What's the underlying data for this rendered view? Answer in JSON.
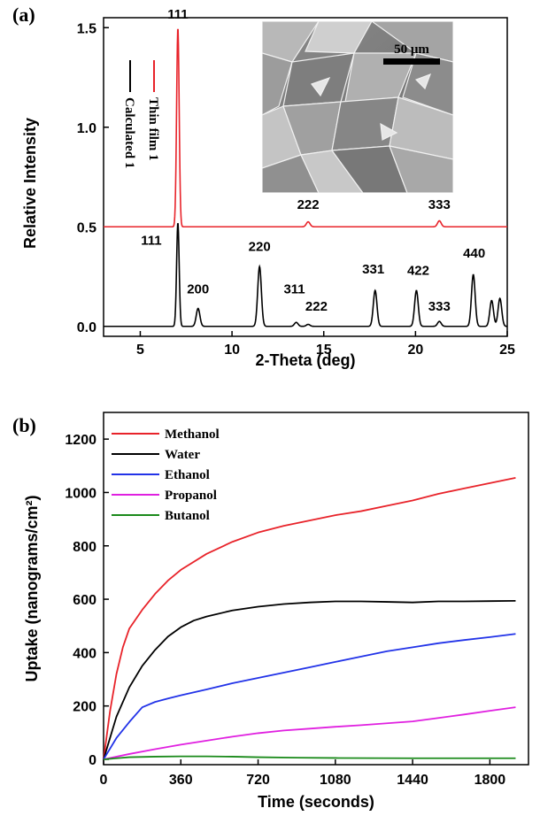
{
  "chart_data": [
    {
      "panel": "(a)",
      "type": "line",
      "xlabel": "2-Theta (deg)",
      "ylabel": "Relative Intensity",
      "xlim": [
        3,
        25
      ],
      "ylim": [
        -0.05,
        1.55
      ],
      "xticks": [
        5,
        10,
        15,
        20,
        25
      ],
      "yticks": [
        0.0,
        0.5,
        1.0,
        1.5
      ],
      "legend": {
        "placement": "top-left, rotated",
        "entries": [
          "Thin film 1",
          "Calculated 1"
        ]
      },
      "inset": {
        "type": "SEM micrograph",
        "scale_bar": "50 μm",
        "position": "top-right"
      },
      "series": [
        {
          "name": "Thin film 1",
          "color": "#e8232a",
          "baseline": 0.5,
          "peaks": [
            [
              7.05,
              1.0
            ],
            [
              14.15,
              0.025
            ],
            [
              21.3,
              0.03
            ]
          ]
        },
        {
          "name": "Calculated 1",
          "color": "#000000",
          "baseline": 0.0,
          "peaks": [
            [
              7.05,
              0.52
            ],
            [
              8.15,
              0.09
            ],
            [
              11.5,
              0.3
            ],
            [
              13.5,
              0.02
            ],
            [
              14.15,
              0.01
            ],
            [
              17.8,
              0.18
            ],
            [
              20.05,
              0.18
            ],
            [
              21.3,
              0.025
            ],
            [
              23.15,
              0.26
            ],
            [
              24.15,
              0.13
            ],
            [
              24.6,
              0.14
            ]
          ]
        }
      ],
      "peak_labels": [
        {
          "text": "111",
          "x": 7.05,
          "y": 1.545
        },
        {
          "text": "222",
          "x": 14.15,
          "y": 0.59
        },
        {
          "text": "333",
          "x": 21.3,
          "y": 0.59
        },
        {
          "text": "111",
          "x": 5.6,
          "y": 0.41
        },
        {
          "text": "200",
          "x": 8.15,
          "y": 0.165
        },
        {
          "text": "220",
          "x": 11.5,
          "y": 0.38
        },
        {
          "text": "311",
          "x": 13.4,
          "y": 0.165
        },
        {
          "text": "222",
          "x": 14.6,
          "y": 0.08
        },
        {
          "text": "331",
          "x": 17.7,
          "y": 0.265
        },
        {
          "text": "422",
          "x": 20.15,
          "y": 0.26
        },
        {
          "text": "333",
          "x": 21.3,
          "y": 0.08
        },
        {
          "text": "440",
          "x": 23.2,
          "y": 0.345
        }
      ]
    },
    {
      "panel": "(b)",
      "type": "line",
      "xlabel": "Time (seconds)",
      "ylabel": "Uptake (nanograms/cm²)",
      "xlim": [
        0,
        1980
      ],
      "ylim": [
        -20,
        1300
      ],
      "xticks": [
        0,
        360,
        720,
        1080,
        1440,
        1800
      ],
      "yticks": [
        0,
        200,
        400,
        600,
        800,
        1000,
        1200
      ],
      "legend": {
        "placement": "top-left",
        "entries": [
          "Methanol",
          "Water",
          "Ethanol",
          "Propanol",
          "Butanol"
        ]
      },
      "series": [
        {
          "name": "Methanol",
          "color": "#e8232a",
          "x": [
            0,
            30,
            60,
            90,
            120,
            180,
            240,
            300,
            360,
            480,
            600,
            720,
            840,
            960,
            1080,
            1200,
            1320,
            1440,
            1560,
            1680,
            1800,
            1920
          ],
          "values": [
            0,
            180,
            320,
            420,
            490,
            560,
            620,
            670,
            710,
            770,
            815,
            850,
            875,
            895,
            915,
            930,
            950,
            970,
            995,
            1015,
            1035,
            1055
          ]
        },
        {
          "name": "Water",
          "color": "#000000",
          "x": [
            0,
            60,
            120,
            180,
            240,
            300,
            360,
            420,
            480,
            600,
            720,
            840,
            960,
            1080,
            1200,
            1320,
            1440,
            1560,
            1680,
            1800,
            1920
          ],
          "values": [
            0,
            160,
            270,
            350,
            410,
            460,
            495,
            520,
            535,
            558,
            572,
            582,
            588,
            592,
            592,
            590,
            588,
            592,
            592,
            593,
            594
          ]
        },
        {
          "name": "Ethanol",
          "color": "#2233e8",
          "x": [
            0,
            60,
            120,
            180,
            240,
            300,
            360,
            480,
            600,
            720,
            840,
            960,
            1080,
            1200,
            1320,
            1440,
            1560,
            1680,
            1800,
            1920
          ],
          "values": [
            0,
            80,
            140,
            195,
            215,
            228,
            240,
            262,
            285,
            305,
            325,
            345,
            365,
            385,
            405,
            420,
            435,
            447,
            458,
            470
          ]
        },
        {
          "name": "Propanol",
          "color": "#e020e0",
          "x": [
            0,
            120,
            240,
            360,
            480,
            600,
            720,
            840,
            960,
            1080,
            1200,
            1320,
            1440,
            1560,
            1680,
            1800,
            1920
          ],
          "values": [
            0,
            20,
            38,
            55,
            70,
            85,
            98,
            108,
            115,
            122,
            128,
            135,
            142,
            155,
            168,
            182,
            195
          ]
        },
        {
          "name": "Butanol",
          "color": "#1a8a1a",
          "x": [
            0,
            120,
            240,
            360,
            480,
            600,
            720,
            900,
            1080,
            1440,
            1800,
            1920
          ],
          "values": [
            0,
            8,
            10,
            11,
            11,
            10,
            8,
            6,
            5,
            4,
            4,
            4
          ]
        }
      ]
    }
  ]
}
